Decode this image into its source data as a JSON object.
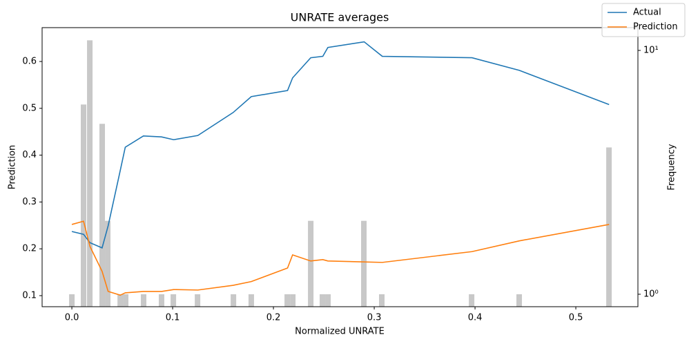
{
  "chart_data": {
    "type": "line",
    "title": "UNRATE averages",
    "x_label": "Normalized UNRATE",
    "y_label": "Prediction",
    "y2_label": "Frequency",
    "x": [
      0.0,
      0.0116,
      0.018,
      0.03,
      0.036,
      0.048,
      0.053,
      0.071,
      0.089,
      0.101,
      0.125,
      0.16,
      0.178,
      0.214,
      0.219,
      0.237,
      0.249,
      0.254,
      0.29,
      0.308,
      0.397,
      0.444,
      0.533
    ],
    "series": [
      {
        "name": "Actual",
        "color": "#1f77b4",
        "values": [
          0.237,
          0.231,
          0.213,
          0.202,
          0.249,
          0.367,
          0.417,
          0.441,
          0.439,
          0.433,
          0.442,
          0.491,
          0.525,
          0.538,
          0.565,
          0.608,
          0.611,
          0.63,
          0.642,
          0.611,
          0.608,
          0.581,
          0.508
        ]
      },
      {
        "name": "Prediction",
        "color": "#ff7f0e",
        "values": [
          0.252,
          0.259,
          0.205,
          0.152,
          0.109,
          0.101,
          0.106,
          0.109,
          0.109,
          0.113,
          0.112,
          0.122,
          0.13,
          0.159,
          0.187,
          0.174,
          0.177,
          0.174,
          0.172,
          0.171,
          0.194,
          0.217,
          0.252
        ]
      }
    ],
    "histogram": {
      "axis": "y2",
      "color": "#c8c8c8",
      "x": [
        0.0,
        0.0116,
        0.0178,
        0.0301,
        0.0356,
        0.048,
        0.0534,
        0.0712,
        0.089,
        0.1007,
        0.1247,
        0.1603,
        0.178,
        0.2137,
        0.2192,
        0.237,
        0.2486,
        0.2541,
        0.2897,
        0.3075,
        0.3966,
        0.4438,
        0.5329
      ],
      "values": [
        1,
        6,
        11,
        5,
        2,
        1,
        1,
        1,
        1,
        1,
        1,
        1,
        1,
        1,
        1,
        2,
        1,
        1,
        2,
        1,
        1,
        1,
        4
      ]
    },
    "xlim": [
      -0.0295,
      0.5616
    ],
    "xticks": [
      {
        "value": 0,
        "label": "0.0"
      },
      0.1,
      0.2,
      0.3,
      0.4,
      0.5
    ],
    "ylim": [
      0.0764,
      0.6723
    ],
    "yticks": [
      0.1,
      0.2,
      0.3,
      0.4,
      0.5,
      0.6
    ],
    "y2lim": [
      0.889,
      12.4
    ],
    "y2ticks": [
      {
        "value": 1,
        "label": "10⁰"
      },
      {
        "value": 10,
        "label": "10¹"
      }
    ],
    "y2_log": true,
    "legend": "upper right"
  }
}
